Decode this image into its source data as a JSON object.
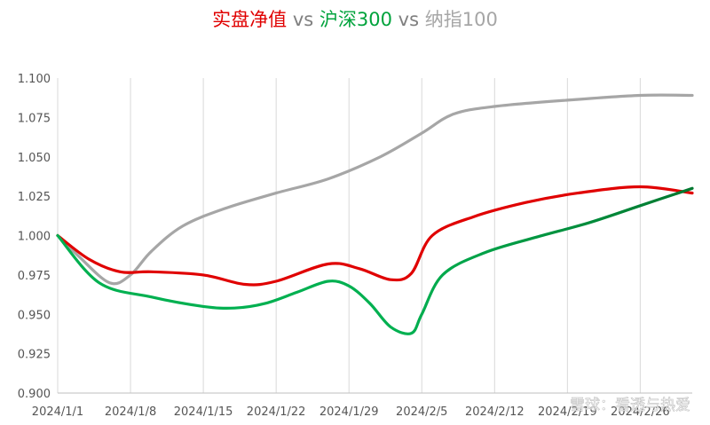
{
  "chart_data": {
    "type": "line",
    "title_parts": [
      {
        "text": "实盘净值",
        "color": "#e00000"
      },
      {
        "text": " vs ",
        "color": "#7f7f7f"
      },
      {
        "text": "沪深300",
        "color": "#00a33c"
      },
      {
        "text": " vs ",
        "color": "#7f7f7f"
      },
      {
        "text": "纳指100",
        "color": "#a6a6a6"
      }
    ],
    "xlabel": "",
    "ylabel": "",
    "x_ticks": [
      "2024/1/1",
      "2024/1/8",
      "2024/1/15",
      "2024/1/22",
      "2024/1/29",
      "2024/2/5",
      "2024/2/12",
      "2024/2/19",
      "2024/2/26"
    ],
    "xlim": [
      "2024-01-01",
      "2024-03-02"
    ],
    "y_ticks": [
      "0.900",
      "0.925",
      "0.950",
      "0.975",
      "1.000",
      "1.025",
      "1.050",
      "1.075",
      "1.100"
    ],
    "ylim": [
      0.9,
      1.1
    ],
    "grid": {
      "vertical": true,
      "horizontal": false
    },
    "legend": "none",
    "series": [
      {
        "name": "纳指100",
        "color": "#a6a6a6",
        "points": [
          [
            "2024-01-01",
            1.0
          ],
          [
            "2024-01-03",
            0.987
          ],
          [
            "2024-01-06",
            0.97
          ],
          [
            "2024-01-08",
            0.975
          ],
          [
            "2024-01-10",
            0.99
          ],
          [
            "2024-01-13",
            1.006
          ],
          [
            "2024-01-17",
            1.017
          ],
          [
            "2024-01-22",
            1.027
          ],
          [
            "2024-01-27",
            1.036
          ],
          [
            "2024-02-01",
            1.05
          ],
          [
            "2024-02-05",
            1.065
          ],
          [
            "2024-02-08",
            1.077
          ],
          [
            "2024-02-12",
            1.082
          ],
          [
            "2024-02-19",
            1.086
          ],
          [
            "2024-02-26",
            1.089
          ],
          [
            "2024-03-02",
            1.089
          ]
        ]
      },
      {
        "name": "实盘净值",
        "color": "#e00000",
        "points": [
          [
            "2024-01-01",
            1.0
          ],
          [
            "2024-01-04",
            0.985
          ],
          [
            "2024-01-07",
            0.977
          ],
          [
            "2024-01-10",
            0.977
          ],
          [
            "2024-01-15",
            0.975
          ],
          [
            "2024-01-19",
            0.969
          ],
          [
            "2024-01-22",
            0.971
          ],
          [
            "2024-01-27",
            0.982
          ],
          [
            "2024-01-30",
            0.979
          ],
          [
            "2024-02-02",
            0.972
          ],
          [
            "2024-02-04",
            0.976
          ],
          [
            "2024-02-06",
            1.0
          ],
          [
            "2024-02-10",
            1.012
          ],
          [
            "2024-02-15",
            1.021
          ],
          [
            "2024-02-20",
            1.027
          ],
          [
            "2024-02-26",
            1.031
          ],
          [
            "2024-03-02",
            1.027
          ]
        ]
      },
      {
        "name": "沪深300",
        "color": "#00b050",
        "colors": [
          "#00b050",
          "#00772f"
        ],
        "points": [
          [
            "2024-01-01",
            1.0
          ],
          [
            "2024-01-05",
            0.97
          ],
          [
            "2024-01-10",
            0.961
          ],
          [
            "2024-01-15",
            0.955
          ],
          [
            "2024-01-18",
            0.954
          ],
          [
            "2024-01-21",
            0.957
          ],
          [
            "2024-01-24",
            0.964
          ],
          [
            "2024-01-27",
            0.971
          ],
          [
            "2024-01-29",
            0.968
          ],
          [
            "2024-01-31",
            0.957
          ],
          [
            "2024-02-02",
            0.942
          ],
          [
            "2024-02-04",
            0.938
          ],
          [
            "2024-02-05",
            0.95
          ],
          [
            "2024-02-07",
            0.975
          ],
          [
            "2024-02-11",
            0.989
          ],
          [
            "2024-02-16",
            0.999
          ],
          [
            "2024-02-21",
            1.008
          ],
          [
            "2024-02-26",
            1.019
          ],
          [
            "2024-03-02",
            1.03
          ]
        ]
      }
    ]
  },
  "watermark": "雪球：看透与热爱"
}
